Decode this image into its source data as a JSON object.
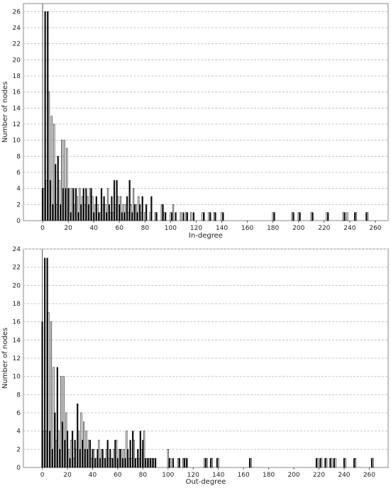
{
  "chart_data": [
    {
      "type": "bar",
      "xlabel": "In-degree",
      "ylabel": "Number of nodes",
      "xlim": [
        -15,
        270
      ],
      "ylim": [
        0,
        27
      ],
      "xticks": [
        0,
        20,
        40,
        60,
        80,
        100,
        120,
        140,
        160,
        180,
        200,
        220,
        240,
        260
      ],
      "yticks": [
        0,
        2,
        4,
        6,
        8,
        10,
        12,
        14,
        16,
        18,
        20,
        22,
        24,
        26
      ],
      "grid": true,
      "x": [
        0,
        1,
        2,
        3,
        4,
        5,
        6,
        7,
        8,
        9,
        10,
        11,
        12,
        13,
        14,
        15,
        16,
        17,
        18,
        19,
        20,
        21,
        22,
        23,
        24,
        25,
        26,
        27,
        28,
        29,
        30,
        31,
        32,
        33,
        34,
        35,
        36,
        37,
        38,
        39,
        40,
        41,
        42,
        43,
        44,
        45,
        46,
        47,
        48,
        49,
        50,
        51,
        52,
        53,
        54,
        55,
        56,
        57,
        58,
        59,
        60,
        61,
        62,
        63,
        64,
        65,
        66,
        67,
        68,
        69,
        70,
        71,
        72,
        73,
        74,
        75,
        76,
        77,
        78,
        80,
        81,
        84,
        85,
        88,
        89,
        93,
        94,
        95,
        96,
        100,
        101,
        102,
        104,
        108,
        110,
        112,
        113,
        116,
        118,
        125,
        126,
        130,
        131,
        134,
        135,
        140,
        141,
        180,
        181,
        195,
        196,
        200,
        201,
        210,
        211,
        222,
        223,
        235,
        236,
        238,
        244,
        245,
        253,
        254
      ],
      "values": [
        4,
        4,
        26,
        5,
        26,
        16,
        5,
        13,
        2,
        12,
        7,
        2,
        8,
        5,
        2,
        10,
        4,
        10,
        4,
        9,
        4,
        4,
        1,
        4,
        4,
        2,
        4,
        3,
        1,
        4,
        2,
        3,
        4,
        2,
        4,
        3,
        2,
        4,
        4,
        3,
        1,
        2,
        3,
        2,
        1,
        1,
        4,
        2,
        3,
        2,
        1,
        4,
        2,
        1,
        3,
        1,
        5,
        2,
        5,
        3,
        2,
        3,
        1,
        2,
        1,
        2,
        3,
        1,
        5,
        2,
        1,
        4,
        2,
        2,
        1,
        3,
        2,
        1,
        3,
        1,
        2,
        1,
        3,
        1,
        1,
        2,
        2,
        1,
        1,
        1,
        1,
        2,
        1,
        1,
        1,
        1,
        1,
        1,
        1,
        1,
        1,
        1,
        1,
        1,
        1,
        1,
        1,
        1,
        1,
        1,
        1,
        1,
        1,
        1,
        1,
        1,
        1,
        1,
        1,
        1,
        1,
        1,
        1,
        1
      ]
    },
    {
      "type": "bar",
      "xlabel": "Out-degree",
      "ylabel": "Number of nodes",
      "xlim": [
        -15,
        275
      ],
      "ylim": [
        0,
        24
      ],
      "xticks": [
        0,
        20,
        40,
        60,
        80,
        100,
        120,
        140,
        160,
        180,
        200,
        220,
        240,
        260
      ],
      "yticks": [
        0,
        2,
        4,
        6,
        8,
        10,
        12,
        14,
        16,
        18,
        20,
        22,
        24
      ],
      "grid": true,
      "x": [
        0,
        1,
        2,
        3,
        4,
        5,
        6,
        7,
        8,
        9,
        10,
        11,
        12,
        13,
        14,
        15,
        16,
        17,
        18,
        19,
        20,
        21,
        22,
        23,
        24,
        25,
        26,
        27,
        28,
        29,
        30,
        31,
        32,
        33,
        34,
        35,
        36,
        37,
        38,
        39,
        40,
        41,
        42,
        43,
        44,
        45,
        46,
        47,
        48,
        49,
        50,
        51,
        52,
        53,
        54,
        55,
        56,
        57,
        58,
        59,
        60,
        61,
        62,
        63,
        64,
        65,
        66,
        67,
        68,
        69,
        70,
        71,
        72,
        73,
        74,
        75,
        76,
        77,
        78,
        79,
        80,
        81,
        82,
        83,
        84,
        85,
        86,
        87,
        88,
        89,
        90,
        100,
        101,
        102,
        104,
        108,
        109,
        112,
        113,
        114,
        115,
        129,
        130,
        131,
        134,
        135,
        139,
        140,
        165,
        166,
        218,
        219,
        221,
        222,
        225,
        226,
        229,
        230,
        232,
        233,
        240,
        241,
        248,
        249,
        262,
        263
      ],
      "values": [
        16,
        4,
        23,
        4,
        23,
        17,
        4,
        16,
        2,
        11,
        6,
        3,
        11,
        4,
        2,
        10,
        5,
        10,
        3,
        6,
        4,
        2,
        1,
        3,
        4,
        1,
        3,
        2,
        7,
        4,
        2,
        6,
        3,
        5,
        2,
        4,
        2,
        3,
        3,
        1,
        2,
        2,
        1,
        1,
        2,
        3,
        1,
        2,
        2,
        1,
        1,
        2,
        3,
        1,
        2,
        1,
        1,
        2,
        3,
        3,
        1,
        2,
        2,
        2,
        1,
        2,
        1,
        4,
        2,
        1,
        3,
        1,
        4,
        3,
        1,
        1,
        2,
        1,
        4,
        2,
        3,
        4,
        1,
        1,
        1,
        1,
        1,
        1,
        1,
        1,
        1,
        2,
        1,
        1,
        1,
        1,
        1,
        1,
        1,
        1,
        1,
        1,
        1,
        1,
        1,
        1,
        1,
        1,
        1,
        1,
        1,
        1,
        1,
        1,
        1,
        1,
        1,
        1,
        1,
        1,
        1,
        1,
        1,
        1,
        1,
        1
      ]
    }
  ]
}
